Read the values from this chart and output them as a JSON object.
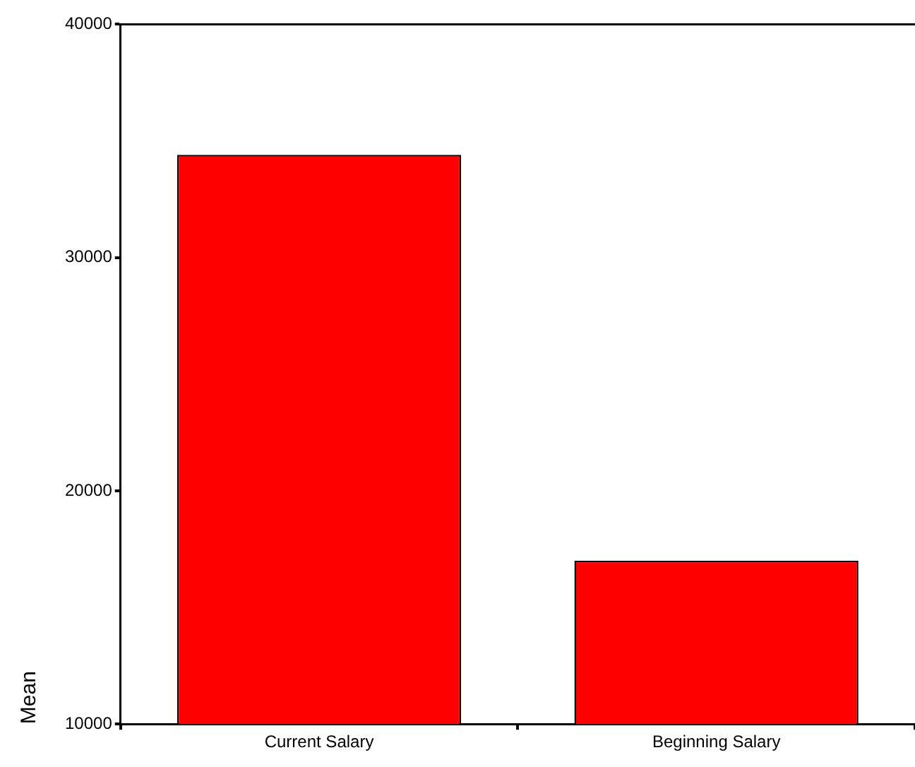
{
  "chart_data": {
    "type": "bar",
    "ylabel": "Mean",
    "categories": [
      "Current Salary",
      "Beginning Salary"
    ],
    "values": [
      34400,
      17000
    ],
    "color": "#ff0000",
    "ylim": [
      10000,
      40000
    ],
    "yticks": [
      10000,
      20000,
      30000,
      40000
    ],
    "grid": false,
    "legend": false
  }
}
